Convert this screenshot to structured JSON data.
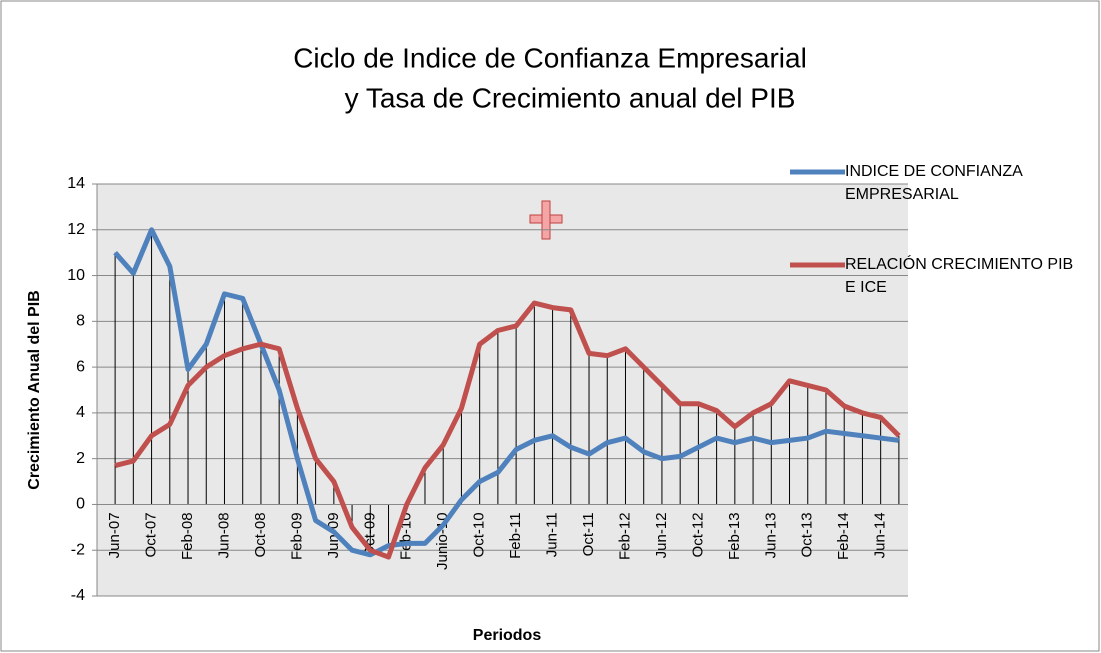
{
  "chart_data": {
    "type": "line",
    "title": [
      "Ciclo de Indice de Confianza Empresarial",
      "y Tasa de Crecimiento anual del PIB"
    ],
    "y_label": "Crecimiento Anual del PIB",
    "x_label": "Periodos",
    "categories": [
      "Jun-07",
      null,
      "Oct-07",
      null,
      "Feb-08",
      null,
      "Jun-08",
      null,
      "Oct-08",
      null,
      "Feb-09",
      null,
      "Jun-09",
      null,
      "Oct-09",
      null,
      "Feb-10",
      null,
      "Junio-10",
      null,
      "Oct-10",
      null,
      "Feb-11",
      null,
      "Jun-11",
      null,
      "Oct-11",
      null,
      "Feb-12",
      null,
      "Jun-12",
      null,
      "Oct-12",
      null,
      "Feb-13",
      null,
      "Jun-13",
      null,
      "Oct-13",
      null,
      "Feb-14",
      null,
      "Jun-14",
      null
    ],
    "series": [
      {
        "name": "INDICE DE CONFIANZA EMPRESARIAL",
        "color": "#4f81bd",
        "values": [
          11,
          10.1,
          12,
          10.4,
          5.9,
          7,
          9.2,
          9.0,
          7,
          5,
          2,
          -0.7,
          -1.2,
          -2,
          -2.2,
          -1.8,
          -1.7,
          -1.7,
          -0.9,
          0.2,
          1,
          1.4,
          2.4,
          2.8,
          3,
          2.5,
          2.2,
          2.7,
          2.9,
          2.3,
          2,
          2.1,
          2.5,
          2.9,
          2.7,
          2.9,
          2.7,
          2.8,
          2.9,
          3.2,
          3.1,
          3,
          2.9,
          2.8
        ]
      },
      {
        "name": "RELACIÓN CRECIMIENTO PIB E ICE",
        "color": "#c0504d",
        "values": [
          1.7,
          1.9,
          3,
          3.5,
          5.2,
          6,
          6.5,
          6.8,
          7,
          6.8,
          4.2,
          2,
          1,
          -1,
          -2,
          -2.3,
          0,
          1.6,
          2.6,
          4.2,
          7,
          7.6,
          7.8,
          8.8,
          8.6,
          8.5,
          6.6,
          6.5,
          6.8,
          6,
          5.2,
          4.4,
          4.4,
          4.1,
          3.4,
          4,
          4.4,
          5.4,
          5.2,
          5,
          4.3,
          4,
          3.8,
          3
        ]
      }
    ],
    "ylim": [
      -4,
      14
    ],
    "yticks": [
      -4,
      -2,
      0,
      2,
      4,
      6,
      8,
      10,
      12,
      14
    ],
    "grid": true,
    "drop_lines": true,
    "legend": "right"
  }
}
